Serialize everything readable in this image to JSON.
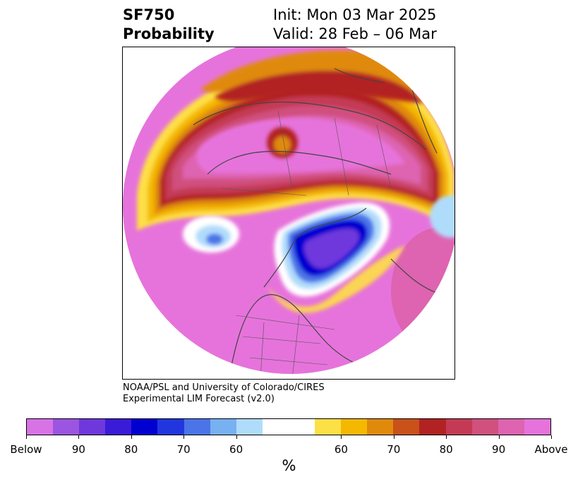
{
  "title": {
    "left_line1": "SF750",
    "left_line2": "Probability",
    "right_line1": "Init: Mon 03 Mar 2025",
    "right_line2": "Valid: 28 Feb – 06 Mar"
  },
  "credit": {
    "line1": "NOAA/PSL and University of Colorado/CIRES",
    "line2": "Experimental LIM Forecast (v2.0)"
  },
  "colorbar": {
    "unit": "%",
    "colors": [
      "#d873e6",
      "#9b55e0",
      "#6e38dd",
      "#3a1bd8",
      "#0000d0",
      "#2236df",
      "#4b74e8",
      "#77b1f2",
      "#b0dcfb",
      "#ffffff",
      "#ffffff",
      "#fde045",
      "#f4b800",
      "#e08a0b",
      "#c9511a",
      "#b22222",
      "#c43a55",
      "#d0507e",
      "#de63b0",
      "#e673db"
    ],
    "tick_labels": [
      "Below",
      "90",
      "80",
      "70",
      "60",
      "60",
      "70",
      "80",
      "90",
      "Above"
    ]
  },
  "map": {
    "projection": "north-polar-stereographic",
    "background_fill": "#e673db",
    "features": [
      "above-normal-band-arctic",
      "below-normal-eastern-canada",
      "below-normal-alaska-pocket",
      "above-normal-siberia"
    ]
  }
}
